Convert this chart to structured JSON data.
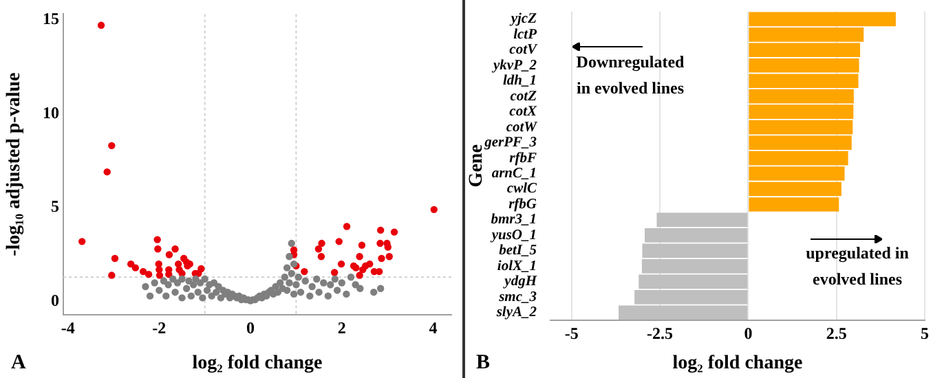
{
  "chart_data": [
    {
      "type": "scatter",
      "xlabel": "log₂ fold change",
      "ylabel": "-log₁₀ adjusted p-value",
      "annotations": [
        "A"
      ],
      "xlim": [
        -4.1,
        4.4
      ],
      "ylim": [
        -0.7,
        15.3
      ],
      "xticks": [
        -4,
        -2,
        0,
        2,
        4
      ],
      "yticks": [
        0,
        5,
        10,
        15
      ],
      "grid": false,
      "legend": false,
      "marker": "circle",
      "ref_lines": [
        {
          "axis": "x",
          "value": -1,
          "color": "#d0d0d0",
          "line_style": "dotted"
        },
        {
          "axis": "x",
          "value": 1,
          "color": "#d0d0d0",
          "line_style": "dotted"
        },
        {
          "axis": "y",
          "value": 1.3,
          "color": "#d0d0d0",
          "line_style": "dotted"
        }
      ],
      "series": [
        {
          "color": "#7f7f7f",
          "x": [
            -2.3,
            -2.2,
            -2.1,
            -2.0,
            -1.9,
            -1.85,
            -1.8,
            -1.7,
            -1.65,
            -1.6,
            -1.5,
            -1.5,
            -1.4,
            -1.35,
            -1.3,
            -1.25,
            -1.2,
            -1.15,
            -1.1,
            -1.05,
            -1.0,
            -0.95,
            -0.9,
            -0.85,
            -0.8,
            -0.75,
            -0.7,
            -0.65,
            -0.6,
            -0.55,
            -0.5,
            -0.45,
            -0.4,
            -0.35,
            -0.3,
            -0.25,
            -0.2,
            -0.15,
            -0.1,
            -0.05,
            0,
            0.05,
            0.1,
            0.15,
            0.2,
            0.25,
            0.3,
            0.35,
            0.4,
            0.45,
            0.5,
            0.55,
            0.6,
            0.65,
            0.7,
            0.75,
            0.8,
            0.8,
            0.85,
            0.85,
            0.9,
            0.9,
            0.95,
            0.95,
            1.0,
            1.05,
            1.1,
            1.2,
            1.3,
            1.35,
            1.45,
            1.5,
            1.6,
            1.7,
            1.75,
            1.85,
            1.9,
            2.0,
            2.1,
            2.2,
            2.3,
            2.4,
            2.7,
            2.85
          ],
          "values": [
            0.8,
            0.3,
            1.0,
            0.6,
            1.1,
            0.3,
            0.9,
            1.2,
            0.5,
            1.0,
            0.2,
            1.2,
            0.7,
            1.1,
            0.3,
            0.9,
            1.2,
            0.5,
            1.0,
            0.2,
            1.2,
            0.6,
            0.9,
            0.3,
            1.0,
            0.5,
            0.8,
            0.2,
            0.6,
            0.4,
            0.5,
            0.2,
            0.4,
            0.3,
            0.2,
            0.3,
            0.1,
            0.2,
            0.1,
            0.1,
            0.05,
            0.1,
            0.1,
            0.2,
            0.3,
            0.2,
            0.4,
            0.3,
            0.5,
            0.6,
            0.4,
            0.8,
            0.5,
            1.0,
            0.7,
            1.3,
            0.6,
            1.8,
            1.0,
            2.4,
            3.1,
            1.5,
            0.4,
            2.0,
            0.9,
            1.3,
            0.5,
            1.1,
            0.3,
            0.8,
            1.2,
            0.5,
            1.0,
            0.3,
            0.9,
            1.2,
            0.6,
            1.0,
            0.4,
            1.3,
            0.9,
            0.7,
            0.5,
            0.7
          ]
        },
        {
          "color": "#e8000b",
          "x": [
            -3.27,
            -3.04,
            -3.14,
            -3.69,
            -2.97,
            -3.04,
            -2.62,
            -2.52,
            -2.35,
            -2.23,
            -2.04,
            -2.03,
            -2.01,
            -2.0,
            -1.99,
            -1.78,
            -1.79,
            -1.79,
            -1.65,
            -1.58,
            -1.56,
            -1.5,
            -1.46,
            -1.4,
            -1.38,
            -1.33,
            -1.21,
            -1.14,
            -1.08,
            0.95,
            0.95,
            1.0,
            1.18,
            1.49,
            1.56,
            1.55,
            1.84,
            1.94,
            1.99,
            2.11,
            2.26,
            2.31,
            2.39,
            2.44,
            2.39,
            2.46,
            2.52,
            2.61,
            2.71,
            2.82,
            2.85,
            2.84,
            2.87,
            2.99,
            3.01,
            3.04,
            3.15,
            4.02
          ],
          "values": [
            14.7,
            8.3,
            6.9,
            3.2,
            2.3,
            1.4,
            2.0,
            1.8,
            1.6,
            1.45,
            3.3,
            2.8,
            2.0,
            1.7,
            1.4,
            2.5,
            1.7,
            1.45,
            2.8,
            2.0,
            1.7,
            1.5,
            2.3,
            2.1,
            1.9,
            2.0,
            1.5,
            1.5,
            1.75,
            2.75,
            2.5,
            1.9,
            1.6,
            2.8,
            3.1,
            2.4,
            1.55,
            3.2,
            2.0,
            4.0,
            1.9,
            1.8,
            2.4,
            3.0,
            1.4,
            1.7,
            1.9,
            2.0,
            1.6,
            1.6,
            3.8,
            3.1,
            2.3,
            3.1,
            2.9,
            2.4,
            3.7,
            4.9
          ]
        }
      ]
    },
    {
      "type": "bar",
      "orientation": "horizontal",
      "xlabel": "log₂ fold change",
      "ylabel": "Gene",
      "annotations": [
        "Downregulated in evolved lines",
        "upregulated in evolved lines",
        "B"
      ],
      "categories": [
        "yjcZ",
        "lctP",
        "cotV",
        "ykvP_2",
        "ldh_1",
        "cotZ",
        "cotX",
        "cotW",
        "gerPF_3",
        "rfbF",
        "arnC_1",
        "cwlC",
        "rfbG",
        "bmr3_1",
        "yusO_1",
        "betI_5",
        "iolX_1",
        "ydgH",
        "smc_3",
        "slyA_2"
      ],
      "values": [
        4.18,
        3.27,
        3.17,
        3.14,
        3.12,
        2.99,
        2.98,
        2.96,
        2.93,
        2.83,
        2.73,
        2.64,
        2.57,
        -2.59,
        -2.93,
        -3.0,
        -3.01,
        -3.1,
        -3.22,
        -3.67
      ],
      "colors": [
        "#ffa500",
        "#ffa500",
        "#ffa500",
        "#ffa500",
        "#ffa500",
        "#ffa500",
        "#ffa500",
        "#ffa500",
        "#ffa500",
        "#ffa500",
        "#ffa500",
        "#ffa500",
        "#ffa500",
        "#bfbfbf",
        "#bfbfbf",
        "#bfbfbf",
        "#bfbfbf",
        "#bfbfbf",
        "#bfbfbf",
        "#bfbfbf"
      ],
      "xlim": [
        -5.6,
        5
      ],
      "xticks": [
        -5,
        -2.5,
        0,
        2.5,
        5
      ],
      "grid": "x",
      "legend": false
    }
  ]
}
